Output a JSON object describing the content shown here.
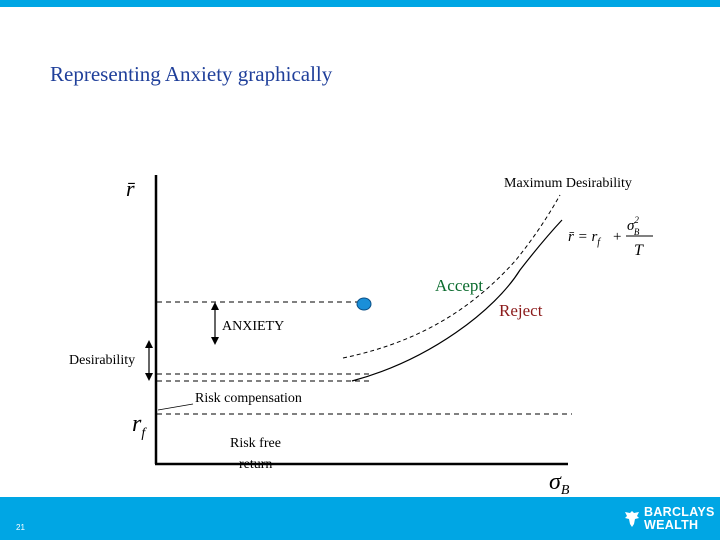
{
  "colors": {
    "accent": "#00a6e4",
    "title": "#1f3f9a",
    "accept": "#0b6b2e",
    "reject": "#8b1a1a",
    "marker": "#1a8fd8"
  },
  "slide": {
    "title": "Representing Anxiety graphically",
    "page_number": "21"
  },
  "diagram": {
    "y_axis_label": "r̄",
    "x_axis_label_main": "σ",
    "x_axis_label_sub": "B",
    "rf_main": "r",
    "rf_sub": "f",
    "max_desirability": "Maximum Desirability",
    "formula": {
      "lhs": "r̄ = r",
      "lhs_sub": "f",
      "plus": "+",
      "num_main": "σ",
      "num_sup": "2",
      "num_sub": "B",
      "den": "T"
    },
    "accept": "Accept",
    "reject": "Reject",
    "anxiety": "ANXIETY",
    "desirability": "Desirability",
    "risk_compensation": "Risk compensation",
    "risk_free_line1": "Risk free",
    "risk_free_line2": "return"
  },
  "brand": {
    "line1": "BARCLAYS",
    "line2": "WEALTH",
    "icon": "eagle-icon"
  }
}
